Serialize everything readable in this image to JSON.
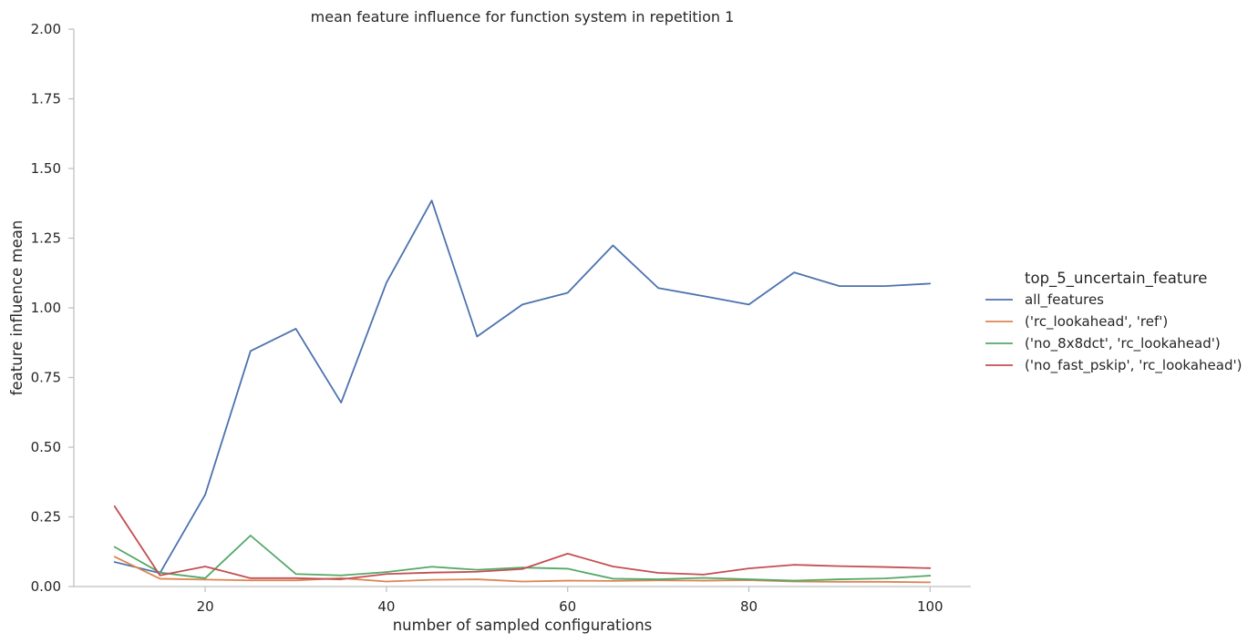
{
  "chart_data": {
    "type": "line",
    "title": "mean feature influence for function system in repetition 1",
    "xlabel": "number of sampled configurations",
    "ylabel": "feature influence mean",
    "xlim": [
      5.5,
      104.5
    ],
    "ylim": [
      0,
      2.0
    ],
    "xticks": [
      20,
      40,
      60,
      80,
      100
    ],
    "xtick_labels": [
      "20",
      "40",
      "60",
      "80",
      "100"
    ],
    "yticks": [
      0,
      0.25,
      0.5,
      0.75,
      1.0,
      1.25,
      1.5,
      1.75,
      2.0
    ],
    "ytick_labels": [
      "0.00",
      "0.25",
      "0.50",
      "0.75",
      "1.00",
      "1.25",
      "1.50",
      "1.75",
      "2.00"
    ],
    "grid": false,
    "legend": {
      "title": "top_5_uncertain_feature",
      "placement": "right"
    },
    "x": [
      10,
      15,
      20,
      25,
      30,
      35,
      40,
      45,
      50,
      55,
      60,
      65,
      70,
      75,
      80,
      85,
      90,
      95,
      100
    ],
    "series": [
      {
        "name": "all_features",
        "color": "#4c72b0",
        "values": [
          0.088,
          0.048,
          0.33,
          0.845,
          0.925,
          0.66,
          1.09,
          1.385,
          0.897,
          1.012,
          1.054,
          1.224,
          1.071,
          1.042,
          1.012,
          1.127,
          1.078,
          1.078,
          1.087
        ]
      },
      {
        "name": "('rc_lookahead', 'ref')",
        "color": "#dd8452",
        "values": [
          0.107,
          0.028,
          0.025,
          0.022,
          0.022,
          0.03,
          0.018,
          0.024,
          0.026,
          0.018,
          0.021,
          0.02,
          0.022,
          0.021,
          0.023,
          0.018,
          0.017,
          0.017,
          0.015
        ]
      },
      {
        "name": "('no_8x8dct', 'rc_lookahead')",
        "color": "#55a868",
        "values": [
          0.142,
          0.05,
          0.03,
          0.183,
          0.045,
          0.04,
          0.052,
          0.071,
          0.06,
          0.068,
          0.064,
          0.028,
          0.026,
          0.031,
          0.026,
          0.021,
          0.026,
          0.029,
          0.039
        ]
      },
      {
        "name": "('no_fast_pskip', 'rc_lookahead')",
        "color": "#c44e52",
        "values": [
          0.288,
          0.04,
          0.072,
          0.03,
          0.03,
          0.026,
          0.045,
          0.05,
          0.053,
          0.063,
          0.118,
          0.072,
          0.049,
          0.043,
          0.065,
          0.078,
          0.073,
          0.07,
          0.066
        ]
      }
    ]
  }
}
